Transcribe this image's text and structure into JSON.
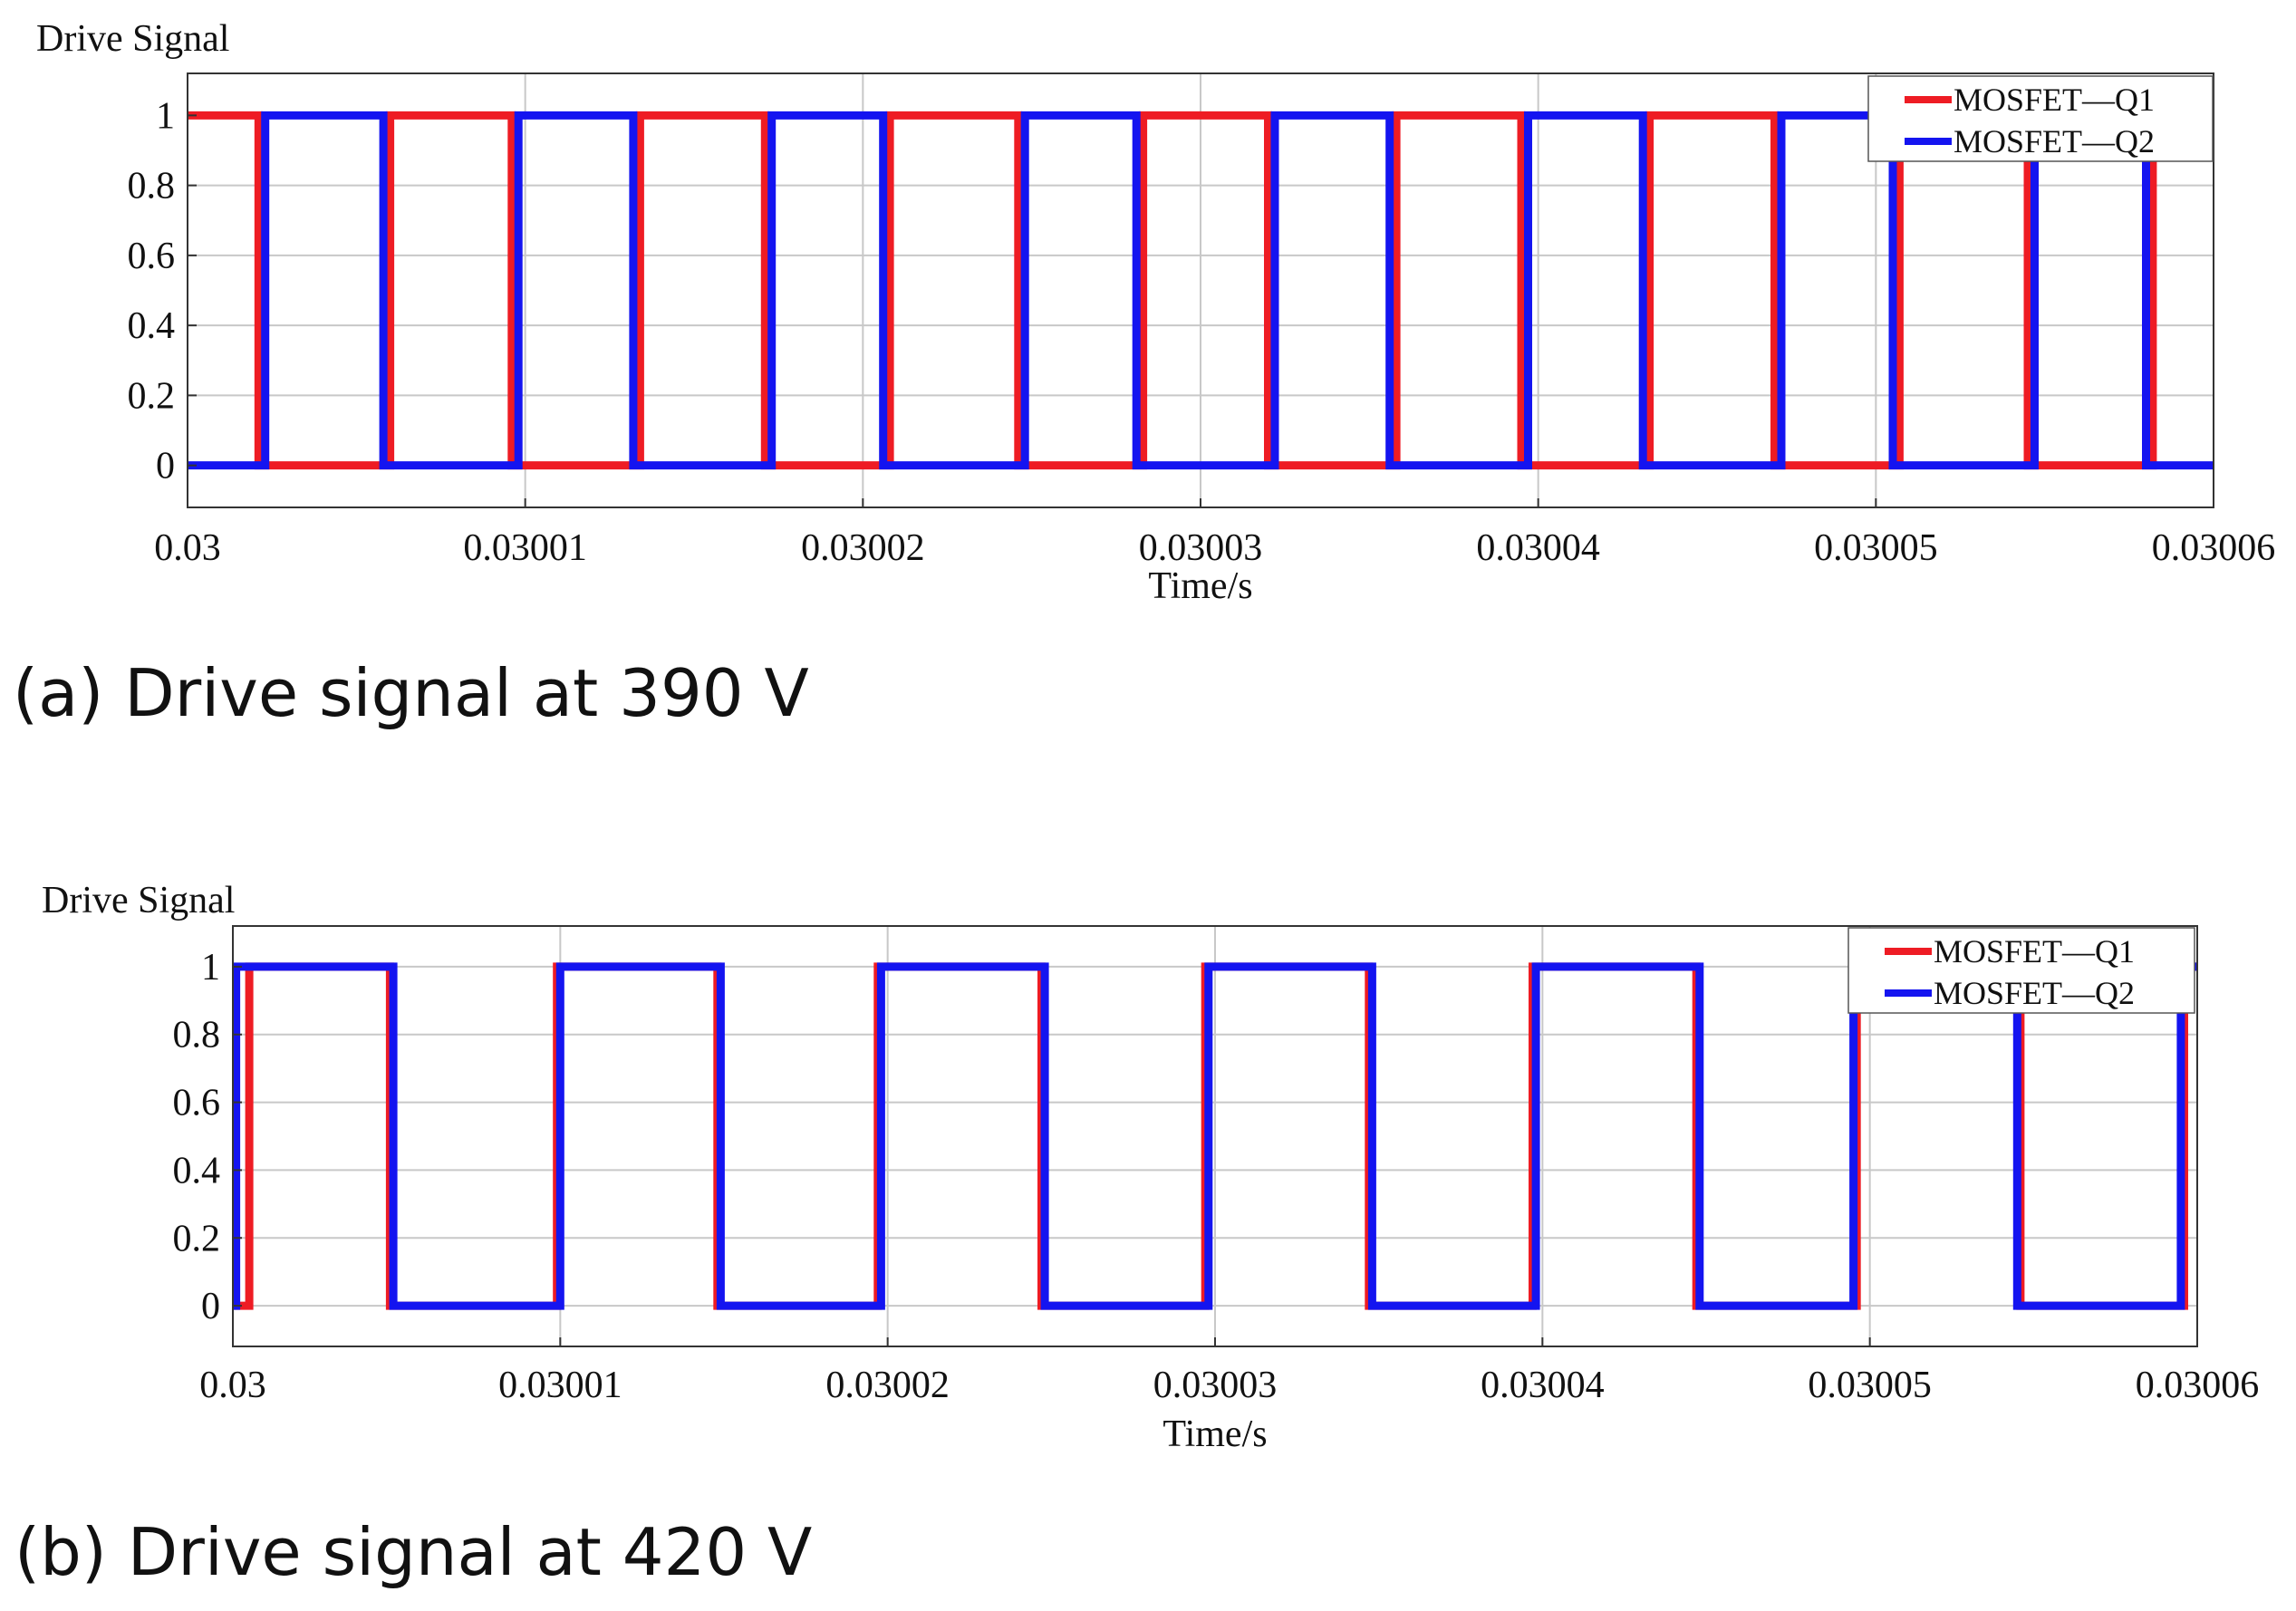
{
  "chart_data": [
    {
      "type": "line",
      "ylabel": "Drive Signal",
      "xlabel": "Time/s",
      "caption": "(a) Drive signal at 390 V",
      "xlim": [
        0.03,
        0.03006
      ],
      "ylim": [
        -0.12,
        1.12
      ],
      "xticks": [
        0.03,
        0.03001,
        0.03002,
        0.03003,
        0.03004,
        0.03005,
        0.03006
      ],
      "xtick_labels": [
        "0.03",
        "0.03001",
        "0.03002",
        "0.03003",
        "0.03004",
        "0.03005",
        "0.03006"
      ],
      "yticks": [
        0,
        0.2,
        0.4,
        0.6,
        0.8,
        1
      ],
      "ytick_labels": [
        "0",
        "0.2",
        "0.4",
        "0.6",
        "0.8",
        "1"
      ],
      "grid": true,
      "legend_position": "top-right",
      "series": [
        {
          "name": "MOSFET—Q1",
          "color": "#ee1c24",
          "start_level": 1,
          "transitions": [
            0.0300021,
            0.030006,
            0.0300096,
            0.0300134,
            0.0300171,
            0.0300208,
            0.0300246,
            0.0300283,
            0.030032,
            0.0300358,
            0.0300395,
            0.0300433,
            0.030047,
            0.0300507,
            0.0300545,
            0.0300582
          ],
          "end": 0.03006
        },
        {
          "name": "MOSFET—Q2",
          "color": "#1414f0",
          "start_level": 0,
          "transitions": [
            0.0300023,
            0.0300058,
            0.0300098,
            0.0300132,
            0.0300173,
            0.0300206,
            0.0300248,
            0.0300281,
            0.0300322,
            0.0300356,
            0.0300397,
            0.0300431,
            0.0300472,
            0.0300505,
            0.0300547,
            0.030058
          ],
          "end": 0.03006
        }
      ]
    },
    {
      "type": "line",
      "ylabel": "Drive Signal",
      "xlabel": "Time/s",
      "caption": "(b) Drive signal at 420 V",
      "xlim": [
        0.03,
        0.03006
      ],
      "ylim": [
        -0.12,
        1.12
      ],
      "xticks": [
        0.03,
        0.03001,
        0.03002,
        0.03003,
        0.03004,
        0.03005,
        0.03006
      ],
      "xtick_labels": [
        "0.03",
        "0.03001",
        "0.03002",
        "0.03003",
        "0.03004",
        "0.03005",
        "0.03006"
      ],
      "yticks": [
        0,
        0.2,
        0.4,
        0.6,
        0.8,
        1
      ],
      "ytick_labels": [
        "0",
        "0.2",
        "0.4",
        "0.6",
        "0.8",
        "1"
      ],
      "grid": true,
      "legend_position": "top-right",
      "series": [
        {
          "name": "MOSFET—Q1",
          "color": "#ee1c24",
          "start_level": 0,
          "transitions": [
            0.0300005,
            0.0300048,
            0.0300099,
            0.0300148,
            0.0300197,
            0.0300247,
            0.0300297,
            0.0300347,
            0.0300397,
            0.0300447,
            0.0300496,
            0.0300546,
            0.0300596
          ],
          "end": 0.03006
        },
        {
          "name": "MOSFET—Q2",
          "color": "#1414f0",
          "start_level": 0,
          "transitions": [
            0.0300001,
            0.0300049,
            0.03001,
            0.0300149,
            0.0300198,
            0.0300248,
            0.0300298,
            0.0300348,
            0.0300398,
            0.0300448,
            0.0300495,
            0.0300545,
            0.0300595
          ],
          "end": 0.03006
        }
      ]
    }
  ]
}
